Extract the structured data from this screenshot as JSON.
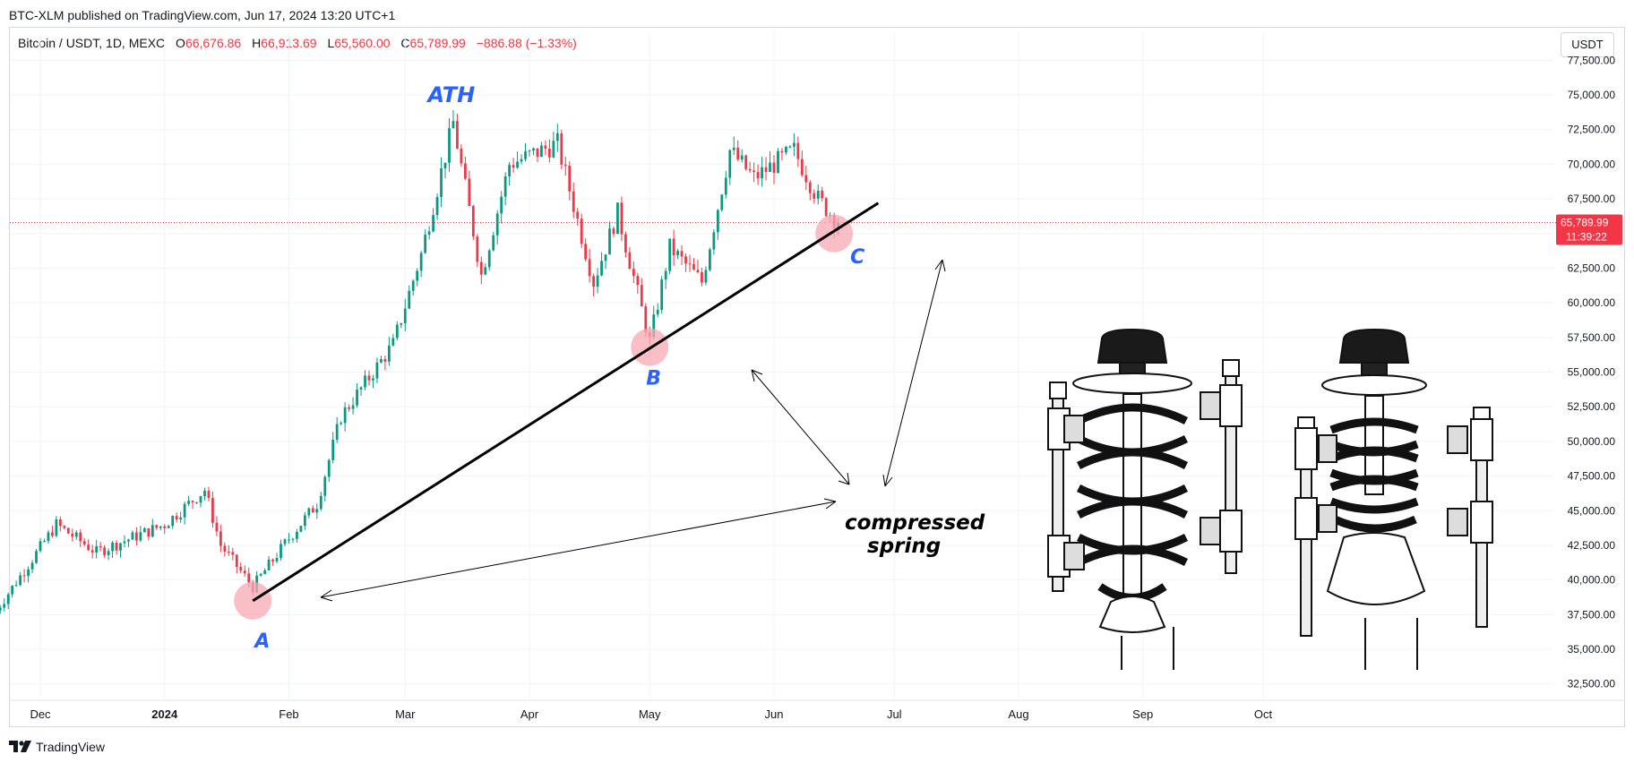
{
  "header": {
    "title": "BTC-XLM published on TradingView.com, Jun 17, 2024 13:20 UTC+1"
  },
  "ohlc": {
    "symbol": "Bitcoin / USDT, 1D, MEXC",
    "o_label": "O",
    "o": "66,676.86",
    "h_label": "H",
    "h": "66,913.69",
    "l_label": "L",
    "l": "65,560.00",
    "c_label": "C",
    "c": "65,789.99",
    "change": "−886.88 (−1.33%)"
  },
  "currency_button": "USDT",
  "price_tag": {
    "price": "65,789.99",
    "countdown": "11:39:22"
  },
  "footer": {
    "brand": "TradingView"
  },
  "colors": {
    "up": "#089981",
    "down": "#f23645",
    "label_blue": "#2962ff",
    "highlight": "#f7a8b3"
  },
  "annotations": {
    "ath": "ATH",
    "a": "A",
    "b": "B",
    "c": "C",
    "spring_line1": "compressed",
    "spring_line2": "spring"
  },
  "chart_data": {
    "type": "candlestick",
    "title": "Bitcoin / USDT, 1D, MEXC",
    "y_axis": {
      "ticks": [
        "35,000.00",
        "37,500.00",
        "40,000.00",
        "42,500.00",
        "45,000.00",
        "47,500.00",
        "50,000.00",
        "52,500.00",
        "55,000.00",
        "57,500.00",
        "60,000.00",
        "62,500.00",
        "65,000.00",
        "67,500.00",
        "70,000.00",
        "72,500.00",
        "75,000.00",
        "77,500.00"
      ],
      "tick_values": [
        32500,
        35000,
        37500,
        40000,
        42500,
        45000,
        47500,
        50000,
        52500,
        55000,
        57500,
        60000,
        62500,
        65000,
        67500,
        70000,
        72500,
        75000,
        77500
      ],
      "tick_labels": [
        "32,500.00",
        "35,000.00",
        "37,500.00",
        "40,000.00",
        "42,500.00",
        "45,000.00",
        "47,500.00",
        "50,000.00",
        "52,500.00",
        "55,000.00",
        "57,500.00",
        "60,000.00",
        "62,500.00",
        "65,000.00",
        "67,500.00",
        "70,000.00",
        "72,500.00",
        "75,000.00",
        "77,500.00"
      ]
    },
    "x_axis": {
      "labels": [
        "Dec",
        "2024",
        "Feb",
        "Mar",
        "Apr",
        "May",
        "Jun",
        "Jul",
        "Aug",
        "Sep",
        "Oct"
      ],
      "dates": [
        "2023-12-01",
        "2024-01-01",
        "2024-02-01",
        "2024-03-01",
        "2024-04-01",
        "2024-05-01",
        "2024-06-01",
        "2024-07-01",
        "2024-08-01",
        "2024-09-01",
        "2024-10-01"
      ]
    },
    "last_price": 65789.99,
    "anchors": [
      {
        "date": "2023-11-20",
        "close": 37800
      },
      {
        "date": "2023-12-05",
        "close": 44000
      },
      {
        "date": "2023-12-15",
        "close": 42000
      },
      {
        "date": "2024-01-01",
        "close": 44000
      },
      {
        "date": "2024-01-11",
        "close": 46500
      },
      {
        "date": "2024-01-15",
        "close": 42500
      },
      {
        "date": "2024-01-23",
        "close": 39500
      },
      {
        "date": "2024-02-01",
        "close": 43000
      },
      {
        "date": "2024-02-08",
        "close": 45500
      },
      {
        "date": "2024-02-14",
        "close": 51800
      },
      {
        "date": "2024-02-27",
        "close": 57000
      },
      {
        "date": "2024-03-05",
        "close": 63500
      },
      {
        "date": "2024-03-13",
        "close": 73000
      },
      {
        "date": "2024-03-20",
        "close": 62000
      },
      {
        "date": "2024-03-27",
        "close": 70000
      },
      {
        "date": "2024-04-08",
        "close": 71500
      },
      {
        "date": "2024-04-17",
        "close": 61500
      },
      {
        "date": "2024-04-23",
        "close": 66500
      },
      {
        "date": "2024-05-01",
        "close": 57200
      },
      {
        "date": "2024-05-06",
        "close": 64000
      },
      {
        "date": "2024-05-14",
        "close": 61500
      },
      {
        "date": "2024-05-21",
        "close": 71000
      },
      {
        "date": "2024-05-27",
        "close": 69000
      },
      {
        "date": "2024-06-06",
        "close": 71000
      },
      {
        "date": "2024-06-12",
        "close": 67500
      },
      {
        "date": "2024-06-17",
        "close": 65790
      }
    ],
    "trendline": {
      "start": {
        "date": "2024-01-23",
        "price": 38500
      },
      "end": {
        "date": "2024-06-27",
        "price": 67200
      }
    },
    "markers": [
      {
        "label": "A",
        "date": "2024-01-23",
        "price": 38500
      },
      {
        "label": "B",
        "date": "2024-05-01",
        "price": 56800
      },
      {
        "label": "C",
        "date": "2024-06-16",
        "price": 65000
      }
    ],
    "ath_label_date": "2024-03-12"
  }
}
